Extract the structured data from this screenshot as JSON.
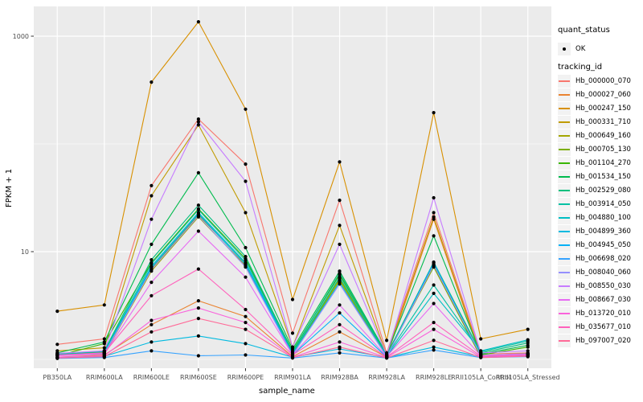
{
  "colors": {
    "panel_bg": "#EBEBEB",
    "grid_major": "#FFFFFF",
    "grid_minor": "#F7F7F7",
    "tick_mark": "#333333",
    "tick_label": "#4D4D4D",
    "point": "#000000",
    "legend_key_bg": "#F2F2F2"
  },
  "legend": {
    "quant_status_title": "quant_status",
    "quant_status_ok_label": "OK",
    "tracking_title": "tracking_id"
  },
  "chart_data": {
    "type": "line",
    "title": "",
    "xlabel": "sample_name",
    "ylabel": "FPKM + 1",
    "y_scale": "log10",
    "ylim": [
      1,
      1500
    ],
    "grid": true,
    "legend_position": "right",
    "y_major_ticks": [
      {
        "value": 1000,
        "label": "1000"
      },
      {
        "value": 10,
        "label": "10"
      }
    ],
    "y_minor_ticks": [
      100,
      1
    ],
    "point_shape": "filled-circle",
    "quant_status_all_points": "OK",
    "categories": [
      "PB350LA",
      "RRIM600LA",
      "RRIM600LE",
      "RRIM600SE",
      "RRIM600PE",
      "RRIM901LA",
      "RRIM928BA",
      "RRIM928LA",
      "RRIM928LE",
      "RRII105LA_Control",
      "RRII105LA_Stressed"
    ],
    "series": [
      {
        "name": "Hb_000000_070",
        "color": "#F8766D",
        "values": [
          1.38,
          1.55,
          41,
          170,
          65,
          1.75,
          30,
          1.15,
          23,
          1.12,
          1.15
        ]
      },
      {
        "name": "Hb_000027_060",
        "color": "#EA8331",
        "values": [
          1.05,
          1.1,
          2.1,
          3.5,
          2.5,
          1.06,
          1.8,
          1.05,
          20,
          1.05,
          1.1
        ]
      },
      {
        "name": "Hb_000247_150",
        "color": "#D89000",
        "values": [
          2.8,
          3.2,
          375,
          1360,
          210,
          3.6,
          68,
          1.5,
          195,
          1.55,
          1.9
        ]
      },
      {
        "name": "Hb_000331_710",
        "color": "#C09B00",
        "values": [
          1.2,
          1.28,
          33,
          150,
          23,
          1.3,
          17.5,
          1.1,
          21,
          1.08,
          1.14
        ]
      },
      {
        "name": "Hb_000649_160",
        "color": "#A3A500",
        "values": [
          1.1,
          1.12,
          6.6,
          21,
          7.4,
          1.12,
          5.4,
          1.07,
          7.4,
          1.06,
          1.1
        ]
      },
      {
        "name": "Hb_000705_130",
        "color": "#7CAE00",
        "values": [
          1.12,
          1.16,
          6.9,
          22,
          7.7,
          1.14,
          5.6,
          1.08,
          7.2,
          1.05,
          1.12
        ]
      },
      {
        "name": "Hb_001104_270",
        "color": "#39B600",
        "values": [
          1.08,
          1.4,
          7.9,
          25,
          8.6,
          1.2,
          6.1,
          1.1,
          7.7,
          1.1,
          1.3
        ]
      },
      {
        "name": "Hb_001534_150",
        "color": "#00BB4E",
        "values": [
          1.15,
          1.45,
          11.7,
          54,
          10.9,
          1.25,
          6.6,
          1.12,
          14,
          1.12,
          1.35
        ]
      },
      {
        "name": "Hb_002529_080",
        "color": "#00BF7D",
        "values": [
          1.1,
          1.2,
          8.4,
          27,
          9.0,
          1.18,
          6.3,
          1.1,
          8.0,
          1.15,
          1.42
        ]
      },
      {
        "name": "Hb_003914_050",
        "color": "#00C1A3",
        "values": [
          1.12,
          1.18,
          7.7,
          24.5,
          8.3,
          1.15,
          5.8,
          1.08,
          4.9,
          1.18,
          1.48
        ]
      },
      {
        "name": "Hb_004880_100",
        "color": "#00BFC4",
        "values": [
          1.1,
          1.15,
          7.3,
          23,
          7.9,
          1.12,
          5.2,
          1.06,
          4.1,
          1.2,
          1.52
        ]
      },
      {
        "name": "Hb_004899_360",
        "color": "#00BAE0",
        "values": [
          1.04,
          1.07,
          1.45,
          1.65,
          1.4,
          1.05,
          1.25,
          1.04,
          1.3,
          1.06,
          1.1
        ]
      },
      {
        "name": "Hb_004945_050",
        "color": "#00B0F6",
        "values": [
          1.1,
          1.14,
          7.1,
          22.5,
          7.6,
          1.1,
          2.7,
          1.05,
          7.9,
          1.08,
          1.12
        ]
      },
      {
        "name": "Hb_006698_020",
        "color": "#35A2FF",
        "values": [
          1.02,
          1.04,
          1.2,
          1.08,
          1.1,
          1.03,
          1.15,
          1.03,
          1.22,
          1.04,
          1.06
        ]
      },
      {
        "name": "Hb_008040_060",
        "color": "#9590FF",
        "values": [
          1.1,
          1.13,
          6.8,
          21.5,
          7.2,
          1.1,
          5.0,
          1.06,
          7.5,
          1.09,
          1.13
        ]
      },
      {
        "name": "Hb_008550_030",
        "color": "#C77CFF",
        "values": [
          1.14,
          1.2,
          20,
          160,
          45,
          1.3,
          11.7,
          1.1,
          31.6,
          1.15,
          1.2
        ]
      },
      {
        "name": "Hb_008667_030",
        "color": "#E76BF3",
        "values": [
          1.08,
          1.12,
          5.2,
          15.5,
          5.8,
          1.1,
          3.2,
          1.06,
          3.3,
          1.08,
          1.12
        ]
      },
      {
        "name": "Hb_013720_010",
        "color": "#FA62DB",
        "values": [
          1.05,
          1.08,
          2.3,
          3.0,
          2.2,
          1.05,
          1.45,
          1.04,
          1.9,
          1.05,
          1.08
        ]
      },
      {
        "name": "Hb_035677_010",
        "color": "#FF62BC",
        "values": [
          1.1,
          1.15,
          3.9,
          6.9,
          2.9,
          1.1,
          2.1,
          1.05,
          2.2,
          1.07,
          1.1
        ]
      },
      {
        "name": "Hb_097007_020",
        "color": "#FF6A98",
        "values": [
          1.03,
          1.06,
          1.8,
          2.4,
          1.9,
          1.04,
          1.3,
          1.03,
          1.5,
          1.04,
          1.07
        ]
      }
    ]
  }
}
